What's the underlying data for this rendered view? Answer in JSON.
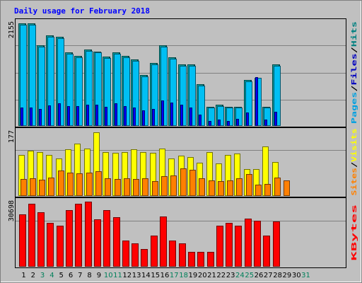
{
  "chart_data": {
    "type": "bar",
    "title": "Daily usage for February 2018",
    "categories": [
      "1",
      "2",
      "3",
      "4",
      "5",
      "6",
      "7",
      "8",
      "9",
      "10",
      "11",
      "12",
      "13",
      "14",
      "15",
      "16",
      "17",
      "18",
      "19",
      "20",
      "21",
      "22",
      "23",
      "24",
      "25",
      "26",
      "27",
      "28",
      "29",
      "30",
      "31"
    ],
    "weekend_days": [
      3,
      4,
      10,
      11,
      17,
      18,
      24,
      25,
      31
    ],
    "panels": [
      {
        "name": "top",
        "ymax": 2155,
        "ymax_label": "2155",
        "right_labels": [
          {
            "text": "Pages",
            "color": "#00a0e0"
          },
          {
            "text": "/",
            "color": "#000000"
          },
          {
            "text": "Files",
            "color": "#0000c0"
          },
          {
            "text": "/",
            "color": "#000000"
          },
          {
            "text": "Hits",
            "color": "#008080"
          }
        ],
        "series": [
          {
            "name": "Hits",
            "color": "#00a0a0",
            "values": [
              2155,
              2155,
              1700,
              1900,
              1880,
              1550,
              1470,
              1600,
              1560,
              1460,
              1550,
              1470,
              1390,
              1070,
              1320,
              1700,
              1440,
              1300,
              1290,
              880,
              400,
              440,
              400,
              400,
              960,
              0,
              400,
              1300,
              0,
              0,
              0
            ]
          },
          {
            "name": "Pages",
            "color": "#00bff3",
            "values": [
              2130,
              2130,
              1670,
              1870,
              1850,
              1520,
              1440,
              1570,
              1540,
              1430,
              1520,
              1440,
              1360,
              1040,
              1290,
              1670,
              1410,
              1270,
              1260,
              850,
              380,
              420,
              380,
              380,
              930,
              1010,
              380,
              1270,
              0,
              0,
              0
            ]
          },
          {
            "name": "Files",
            "color": "#0000ff",
            "values": [
              380,
              380,
              360,
              430,
              480,
              410,
              410,
              450,
              450,
              400,
              480,
              420,
              380,
              330,
              360,
              530,
              490,
              440,
              380,
              240,
              110,
              140,
              110,
              150,
              280,
              1020,
              130,
              300,
              0,
              0,
              0
            ]
          }
        ]
      },
      {
        "name": "middle",
        "ymax": 177,
        "ymax_label": "177",
        "right_labels": [
          {
            "text": "Sites",
            "color": "#ff8000"
          },
          {
            "text": "/",
            "color": "#000000"
          },
          {
            "text": "Visits",
            "color": "#ffff00"
          }
        ],
        "series": [
          {
            "name": "Visits",
            "color": "#ffff00",
            "values": [
              115,
              125,
              122,
              115,
              105,
              130,
              145,
              132,
              177,
              122,
              120,
              122,
              130,
              122,
              120,
              132,
              105,
              112,
              108,
              92,
              122,
              90,
              115,
              118,
              75,
              75,
              138,
              95,
              0,
              0,
              0
            ]
          },
          {
            "name": "Sites",
            "color": "#ff8000",
            "values": [
              48,
              50,
              46,
              52,
              70,
              65,
              62,
              65,
              68,
              50,
              48,
              50,
              48,
              50,
              42,
              55,
              58,
              76,
              72,
              50,
              44,
              42,
              44,
              50,
              60,
              32,
              34,
              52,
              44,
              0,
              0
            ]
          }
        ]
      },
      {
        "name": "bottom",
        "ymax": 30698,
        "ymax_label": "30698",
        "right_labels": [
          {
            "text": "KBytes",
            "color": "#ff0000"
          }
        ],
        "series": [
          {
            "name": "KBytes",
            "color": "#ff0000",
            "values": [
              25000,
              30000,
              26000,
              21000,
              19500,
              27000,
              30000,
              31000,
              22500,
              27000,
              23500,
              12500,
              11000,
              8500,
              15000,
              24000,
              12500,
              11000,
              7000,
              7000,
              7000,
              19500,
              21000,
              19500,
              23000,
              22000,
              15000,
              21500,
              0,
              0,
              0
            ]
          }
        ]
      }
    ]
  }
}
